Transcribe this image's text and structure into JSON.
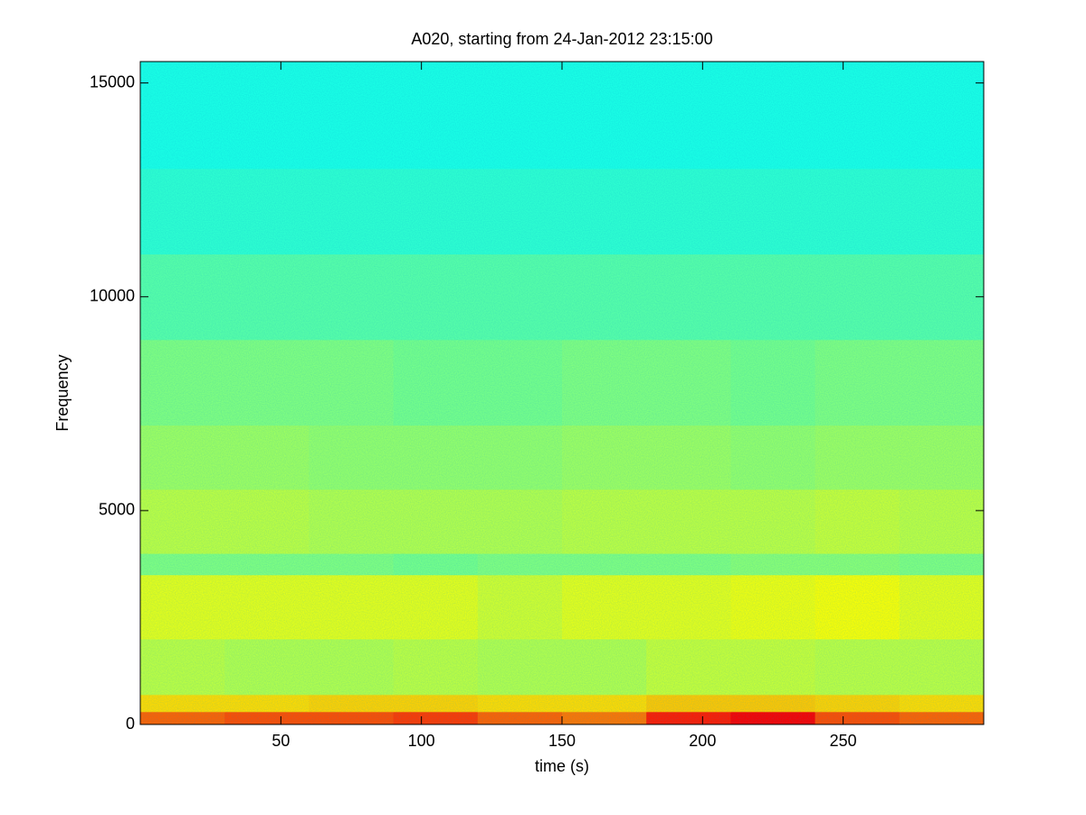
{
  "chart_data": {
    "type": "heatmap",
    "title": "A020, starting from 24-Jan-2012 23:15:00",
    "x_label": "time (s)",
    "y_label": "Frequency",
    "xlim": [
      0,
      300
    ],
    "ylim": [
      0,
      15500
    ],
    "xticks": [
      50,
      100,
      150,
      200,
      250
    ],
    "yticks": [
      0,
      5000,
      10000,
      15000
    ],
    "colormap": "jet",
    "clim": [
      0,
      1
    ],
    "x_bins": [
      0,
      30,
      60,
      90,
      120,
      150,
      180,
      210,
      240,
      270,
      300
    ],
    "y_bins": [
      0,
      300,
      700,
      2000,
      3500,
      4000,
      5500,
      7000,
      9000,
      11000,
      13000,
      15500
    ],
    "z": [
      [
        0.78,
        0.8,
        0.8,
        0.82,
        0.78,
        0.76,
        0.85,
        0.88,
        0.8,
        0.78
      ],
      [
        0.66,
        0.66,
        0.67,
        0.67,
        0.66,
        0.66,
        0.68,
        0.68,
        0.67,
        0.66
      ],
      [
        0.56,
        0.55,
        0.55,
        0.56,
        0.55,
        0.55,
        0.57,
        0.57,
        0.56,
        0.56
      ],
      [
        0.6,
        0.6,
        0.6,
        0.6,
        0.58,
        0.6,
        0.6,
        0.61,
        0.62,
        0.6
      ],
      [
        0.5,
        0.5,
        0.5,
        0.49,
        0.5,
        0.5,
        0.5,
        0.51,
        0.51,
        0.5
      ],
      [
        0.56,
        0.56,
        0.55,
        0.55,
        0.55,
        0.56,
        0.56,
        0.56,
        0.57,
        0.56
      ],
      [
        0.53,
        0.53,
        0.52,
        0.52,
        0.52,
        0.53,
        0.53,
        0.52,
        0.53,
        0.53
      ],
      [
        0.5,
        0.5,
        0.5,
        0.49,
        0.49,
        0.5,
        0.5,
        0.49,
        0.5,
        0.5
      ],
      [
        0.46,
        0.46,
        0.46,
        0.46,
        0.46,
        0.46,
        0.46,
        0.46,
        0.46,
        0.46
      ],
      [
        0.42,
        0.42,
        0.42,
        0.42,
        0.42,
        0.42,
        0.42,
        0.42,
        0.42,
        0.42
      ],
      [
        0.4,
        0.4,
        0.4,
        0.4,
        0.4,
        0.4,
        0.4,
        0.4,
        0.4,
        0.4
      ]
    ]
  }
}
